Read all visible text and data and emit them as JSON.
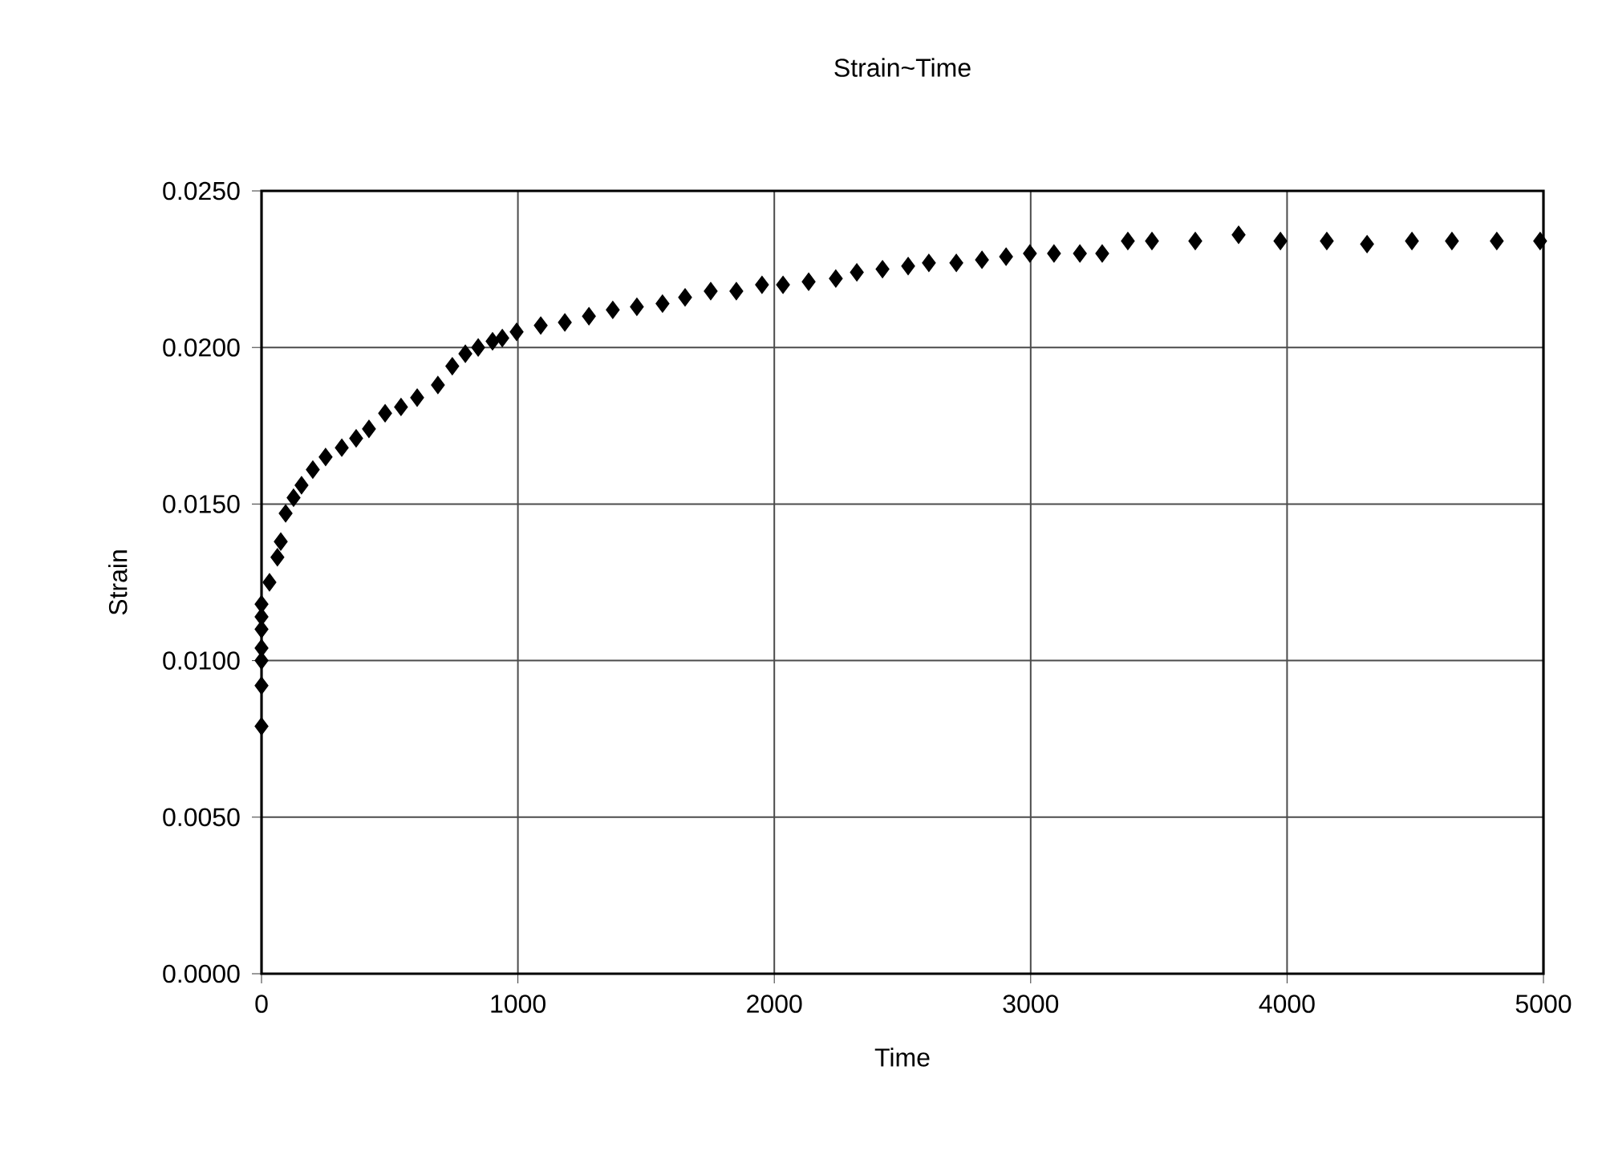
{
  "chart_data": {
    "type": "scatter",
    "title": "Strain~Time",
    "xlabel": "Time",
    "ylabel": "Strain",
    "x": [
      0,
      0,
      0,
      0,
      0,
      0,
      0,
      31,
      62,
      75,
      94,
      125,
      156,
      200,
      250,
      313,
      369,
      419,
      482,
      544,
      607,
      688,
      744,
      795,
      845,
      901,
      939,
      995,
      1089,
      1183,
      1277,
      1370,
      1464,
      1564,
      1652,
      1752,
      1852,
      1952,
      2034,
      2134,
      2240,
      2322,
      2422,
      2522,
      2603,
      2710,
      2810,
      2904,
      2997,
      3091,
      3192,
      3279,
      3379,
      3473,
      3642,
      3811,
      3974,
      4155,
      4312,
      4487,
      4643,
      4818,
      4987
    ],
    "series": [
      {
        "color": "#000000",
        "values": [
          0.0079,
          0.0092,
          0.01,
          0.0104,
          0.011,
          0.0114,
          0.0118,
          0.0125,
          0.0133,
          0.0138,
          0.0147,
          0.0152,
          0.0156,
          0.0161,
          0.0165,
          0.0168,
          0.0171,
          0.0174,
          0.0179,
          0.0181,
          0.0184,
          0.0188,
          0.0194,
          0.0198,
          0.02,
          0.0202,
          0.0203,
          0.0205,
          0.0207,
          0.0208,
          0.021,
          0.0212,
          0.0213,
          0.0214,
          0.0216,
          0.0218,
          0.0218,
          0.022,
          0.022,
          0.0221,
          0.0222,
          0.0224,
          0.0225,
          0.0226,
          0.0227,
          0.0227,
          0.0228,
          0.0229,
          0.023,
          0.023,
          0.023,
          0.023,
          0.0234,
          0.0234,
          0.0234,
          0.0236,
          0.0234,
          0.0234,
          0.0233,
          0.0234,
          0.0234,
          0.0234,
          0.0234
        ]
      }
    ],
    "xlim": [
      0,
      5000
    ],
    "xticks": [
      0,
      1000,
      2000,
      3000,
      4000,
      5000
    ],
    "ylim": [
      0,
      0.025
    ],
    "yticks": [
      {
        "value": 0,
        "label": "0.0000"
      },
      {
        "value": 0.005,
        "label": "0.0050"
      },
      {
        "value": 0.01,
        "label": "0.0100"
      },
      {
        "value": 0.015,
        "label": "0.0150"
      },
      {
        "value": 0.02,
        "label": "0.0200"
      },
      {
        "value": 0.025,
        "label": "0.0250"
      }
    ],
    "grid": true,
    "marker": "diamond"
  }
}
